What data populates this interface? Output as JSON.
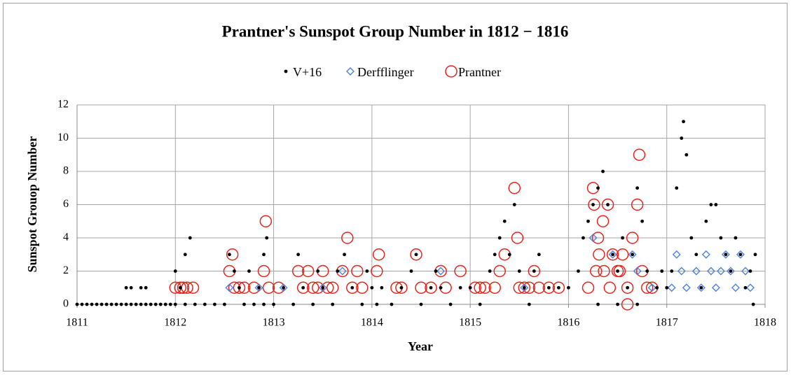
{
  "chart_data": {
    "type": "scatter",
    "title": "Prantner's Sunspot Group Number in 1812 − 1816",
    "xlabel": "Year",
    "ylabel": "Sunspot Grouop Number",
    "xlim": [
      1811,
      1818
    ],
    "xticks": [
      1811,
      1812,
      1813,
      1814,
      1815,
      1816,
      1817,
      1818
    ],
    "ylim": [
      0,
      12
    ],
    "yticks": [
      0,
      2,
      4,
      6,
      8,
      10,
      12
    ],
    "grid": true,
    "legend": "top",
    "series": [
      {
        "name": "V+16",
        "color": "#000000",
        "marker": "dot",
        "x": [
          1811.0,
          1811.05,
          1811.1,
          1811.15,
          1811.2,
          1811.25,
          1811.3,
          1811.35,
          1811.4,
          1811.45,
          1811.5,
          1811.55,
          1811.6,
          1811.65,
          1811.7,
          1811.75,
          1811.8,
          1811.85,
          1811.9,
          1811.95,
          1811.5,
          1811.55,
          1811.65,
          1811.7,
          1812.0,
          1812.05,
          1812.1,
          1812.15,
          1812.0,
          1812.1,
          1812.2,
          1812.3,
          1812.4,
          1812.5,
          1812.55,
          1812.6,
          1812.65,
          1812.75,
          1812.85,
          1812.9,
          1812.93,
          1812.7,
          1812.8,
          1812.9,
          1813.0,
          1813.1,
          1813.2,
          1813.25,
          1813.3,
          1813.4,
          1813.45,
          1813.5,
          1813.6,
          1813.65,
          1813.72,
          1813.8,
          1813.9,
          1813.95,
          1814.0,
          1814.05,
          1814.1,
          1814.2,
          1814.3,
          1814.4,
          1814.45,
          1814.5,
          1814.6,
          1814.65,
          1814.7,
          1814.8,
          1814.9,
          1815.0,
          1815.1,
          1815.2,
          1815.25,
          1815.3,
          1815.35,
          1815.4,
          1815.45,
          1815.5,
          1815.55,
          1815.6,
          1815.65,
          1815.7,
          1815.8,
          1815.9,
          1816.0,
          1816.1,
          1816.15,
          1816.2,
          1816.25,
          1816.3,
          1816.35,
          1816.4,
          1816.45,
          1816.5,
          1816.55,
          1816.6,
          1816.65,
          1816.7,
          1816.75,
          1816.8,
          1816.9,
          1816.95,
          1816.3,
          1816.5,
          1816.7,
          1817.0,
          1817.05,
          1817.1,
          1817.15,
          1817.17,
          1817.2,
          1817.25,
          1817.3,
          1817.35,
          1817.4,
          1817.45,
          1817.5,
          1817.55,
          1817.6,
          1817.65,
          1817.7,
          1817.75,
          1817.8,
          1817.85,
          1817.9,
          1817.88
        ],
        "values": [
          0,
          0,
          0,
          0,
          0,
          0,
          0,
          0,
          0,
          0,
          0,
          0,
          0,
          0,
          0,
          0,
          0,
          0,
          0,
          0,
          1,
          1,
          1,
          1,
          2,
          1,
          3,
          4,
          0,
          0,
          0,
          0,
          0,
          0,
          3,
          2,
          1,
          2,
          1,
          3,
          4,
          0,
          0,
          0,
          0,
          1,
          0,
          3,
          1,
          0,
          2,
          1,
          0,
          2,
          3,
          1,
          0,
          2,
          1,
          0,
          1,
          0,
          1,
          2,
          3,
          0,
          1,
          2,
          1,
          0,
          1,
          1,
          0,
          2,
          3,
          4,
          5,
          3,
          6,
          2,
          1,
          0,
          2,
          3,
          1,
          1,
          1,
          2,
          4,
          5,
          6,
          7,
          8,
          6,
          3,
          2,
          4,
          1,
          3,
          7,
          5,
          2,
          1,
          2,
          0,
          0,
          0,
          1,
          2,
          7,
          10,
          11,
          9,
          4,
          3,
          1,
          5,
          6,
          6,
          4,
          3,
          2,
          4,
          3,
          1,
          2,
          3,
          0
        ]
      },
      {
        "name": "Derfflinger",
        "color": "#4f81e0",
        "marker": "diamond",
        "x": [
          1812.55,
          1812.85,
          1813.1,
          1813.5,
          1813.7,
          1814.7,
          1815.55,
          1816.25,
          1816.45,
          1816.65,
          1816.7,
          1816.85,
          1817.05,
          1817.1,
          1817.15,
          1817.2,
          1817.3,
          1817.35,
          1817.4,
          1817.45,
          1817.5,
          1817.55,
          1817.6,
          1817.65,
          1817.7,
          1817.75,
          1817.8,
          1817.85
        ],
        "values": [
          1,
          1,
          1,
          1,
          2,
          2,
          1,
          4,
          3,
          3,
          2,
          1,
          1,
          3,
          2,
          1,
          2,
          1,
          3,
          2,
          1,
          2,
          3,
          2,
          1,
          3,
          2,
          1
        ]
      },
      {
        "name": "Prantner",
        "color": "#e8231b",
        "marker": "circle",
        "x": [
          1812.0,
          1812.05,
          1812.08,
          1812.12,
          1812.18,
          1812.55,
          1812.58,
          1812.6,
          1812.65,
          1812.7,
          1812.8,
          1812.9,
          1812.92,
          1812.95,
          1813.05,
          1813.25,
          1813.3,
          1813.35,
          1813.4,
          1813.45,
          1813.5,
          1813.55,
          1813.6,
          1813.7,
          1813.75,
          1813.8,
          1813.85,
          1813.9,
          1814.05,
          1814.07,
          1814.25,
          1814.3,
          1814.45,
          1814.5,
          1814.6,
          1814.7,
          1814.75,
          1814.9,
          1815.05,
          1815.1,
          1815.15,
          1815.25,
          1815.3,
          1815.35,
          1815.45,
          1815.48,
          1815.5,
          1815.55,
          1815.6,
          1815.65,
          1815.7,
          1815.8,
          1815.9,
          1816.2,
          1816.25,
          1816.26,
          1816.3,
          1816.31,
          1816.35,
          1816.36,
          1816.4,
          1816.45,
          1816.5,
          1816.55,
          1816.6,
          1816.6,
          1816.65,
          1816.7,
          1816.72,
          1816.75,
          1816.8,
          1816.85,
          1816.28,
          1816.42,
          1816.52
        ],
        "values": [
          1,
          1,
          1,
          1,
          1,
          2,
          3,
          1,
          1,
          1,
          1,
          2,
          5,
          1,
          1,
          2,
          1,
          2,
          1,
          1,
          2,
          1,
          1,
          2,
          4,
          1,
          2,
          1,
          2,
          3,
          1,
          1,
          3,
          1,
          1,
          2,
          1,
          2,
          1,
          1,
          1,
          1,
          2,
          3,
          7,
          4,
          1,
          1,
          1,
          2,
          1,
          1,
          1,
          1,
          7,
          6,
          4,
          3,
          5,
          2,
          6,
          3,
          2,
          3,
          1,
          0,
          4,
          6,
          9,
          2,
          1,
          1,
          2,
          1,
          2
        ]
      }
    ]
  }
}
